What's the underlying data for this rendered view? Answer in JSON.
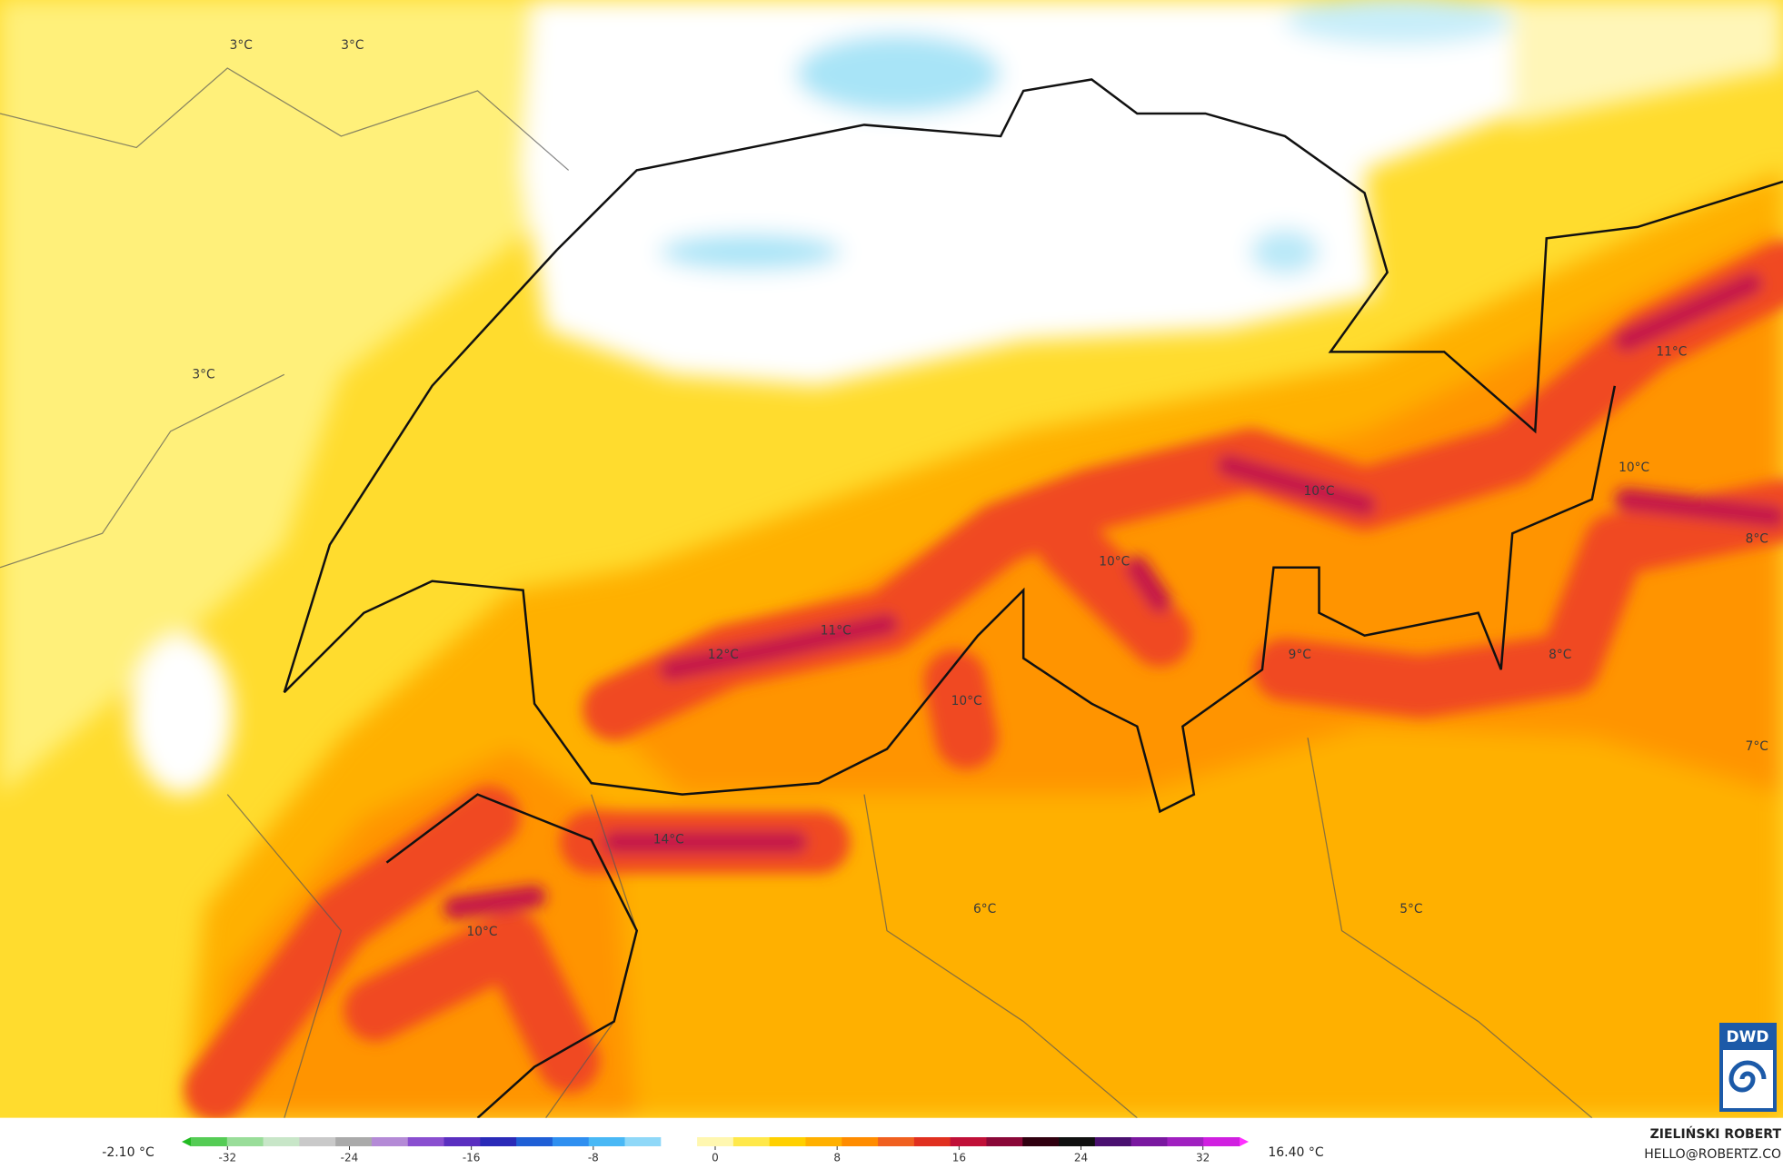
{
  "map": {
    "labels": [
      "3°C",
      "3°C",
      "3°C",
      "11°C",
      "10°C",
      "10°C",
      "10°C",
      "8°C",
      "11°C",
      "12°C",
      "9°C",
      "8°C",
      "10°C",
      "7°C",
      "14°C",
      "6°C",
      "5°C",
      "10°C"
    ],
    "legend": {
      "min_label": "-2.10 °C",
      "max_label": "16.40 °C",
      "xlim": [
        -35,
        35
      ],
      "ticks": [
        -32,
        -24,
        -16,
        -8,
        0,
        8,
        16,
        24,
        32
      ],
      "colors": [
        "#22bb22",
        "#55cc55",
        "#99dd99",
        "#c8e6c8",
        "#c9c9c9",
        "#aaaaaa",
        "#b48ad6",
        "#8a4fd0",
        "#5a2fc0",
        "#2a2ab8",
        "#1f5fd6",
        "#2f8ff0",
        "#49b8f5",
        "#8fd8f8",
        "#ffffff",
        "#fff7b0",
        "#ffe84a",
        "#ffd000",
        "#ffb000",
        "#ff8c00",
        "#f06020",
        "#e03020",
        "#c01038",
        "#8a0838",
        "#300010",
        "#101010",
        "#4a1070",
        "#7a18a0",
        "#a020c0",
        "#d020e0",
        "#ff30ff"
      ]
    },
    "credit": {
      "author": "ZIELIŃSKI ROBERT",
      "email": "HELLO@ROBERTZ.CO",
      "logo": "DWD"
    }
  }
}
